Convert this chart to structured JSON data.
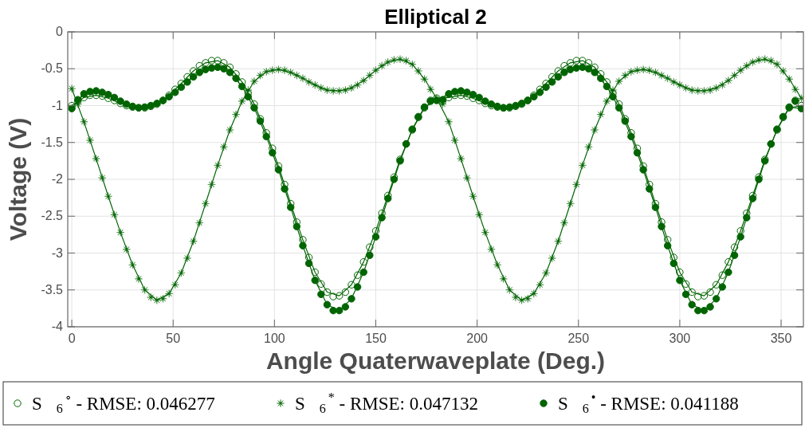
{
  "chart_data": {
    "type": "scatter",
    "title": "Elliptical 2",
    "xlabel": "Angle Quaterwaveplate (Deg.)",
    "ylabel": "Voltage (V)",
    "xlim": [
      -2,
      361
    ],
    "ylim": [
      -4,
      0
    ],
    "xticks": [
      0,
      50,
      100,
      150,
      200,
      250,
      300,
      350
    ],
    "yticks": [
      0,
      -0.5,
      -1,
      -1.5,
      -2,
      -2.5,
      -3,
      -3.5,
      -4
    ],
    "grid": true,
    "legend": "bottom",
    "x": [
      0,
      3,
      6,
      9,
      12,
      15,
      18,
      21,
      24,
      27,
      30,
      33,
      36,
      39,
      42,
      45,
      48,
      51,
      54,
      57,
      60,
      63,
      66,
      69,
      72,
      75,
      78,
      81,
      84,
      87,
      90,
      93,
      96,
      99,
      102,
      105,
      108,
      111,
      114,
      117,
      120,
      123,
      126,
      129,
      132,
      135,
      138,
      141,
      144,
      147,
      150,
      153,
      156,
      159,
      162,
      165,
      168,
      171,
      174,
      177,
      180,
      183,
      186,
      189,
      192,
      195,
      198,
      201,
      204,
      207,
      210,
      213,
      216,
      219,
      222,
      225,
      228,
      231,
      234,
      237,
      240,
      243,
      246,
      249,
      252,
      255,
      258,
      261,
      264,
      267,
      270,
      273,
      276,
      279,
      282,
      285,
      288,
      291,
      294,
      297,
      300,
      303,
      306,
      309,
      312,
      315,
      318,
      321,
      324,
      327,
      330,
      333,
      336,
      339,
      342,
      345,
      348,
      351,
      354,
      357,
      360
    ],
    "series": [
      {
        "name": "S⃗$_{6}$$^{∘}$ - RMSE: 0.046277",
        "color": "#006400",
        "marker": "circle",
        "values": [
          -1.0,
          -0.94,
          -0.89,
          -0.86,
          -0.86,
          -0.87,
          -0.9,
          -0.93,
          -0.97,
          -1.0,
          -1.02,
          -1.03,
          -1.03,
          -1.01,
          -0.98,
          -0.93,
          -0.86,
          -0.78,
          -0.7,
          -0.61,
          -0.53,
          -0.46,
          -0.42,
          -0.39,
          -0.39,
          -0.42,
          -0.48,
          -0.57,
          -0.68,
          -0.83,
          -0.98,
          -1.18,
          -1.37,
          -1.58,
          -1.82,
          -2.07,
          -2.33,
          -2.58,
          -2.82,
          -3.06,
          -3.26,
          -3.42,
          -3.53,
          -3.59,
          -3.58,
          -3.53,
          -3.43,
          -3.3,
          -3.12,
          -2.92,
          -2.7,
          -2.46,
          -2.22,
          -1.97,
          -1.73,
          -1.52,
          -1.33,
          -1.16,
          -1.03,
          -0.93,
          -0.9,
          -0.94,
          -0.89,
          -0.86,
          -0.86,
          -0.87,
          -0.9,
          -0.93,
          -0.97,
          -1.0,
          -1.02,
          -1.03,
          -1.03,
          -1.01,
          -0.98,
          -0.93,
          -0.86,
          -0.78,
          -0.7,
          -0.61,
          -0.53,
          -0.46,
          -0.42,
          -0.39,
          -0.39,
          -0.42,
          -0.48,
          -0.57,
          -0.68,
          -0.83,
          -0.98,
          -1.18,
          -1.37,
          -1.58,
          -1.82,
          -2.07,
          -2.33,
          -2.58,
          -2.82,
          -3.06,
          -3.26,
          -3.42,
          -3.53,
          -3.59,
          -3.58,
          -3.53,
          -3.43,
          -3.3,
          -3.12,
          -2.92,
          -2.7,
          -2.46,
          -2.22,
          -1.97,
          -1.73,
          -1.52,
          -1.33,
          -1.16,
          -1.03,
          -0.93,
          -1.0
        ]
      },
      {
        "name": "S⃗$_{6}$$^{*}$ - RMSE: 0.047132",
        "color": "#006400",
        "marker": "star",
        "values": [
          -0.77,
          -0.98,
          -1.22,
          -1.47,
          -1.72,
          -1.98,
          -2.23,
          -2.48,
          -2.72,
          -2.95,
          -3.16,
          -3.35,
          -3.5,
          -3.6,
          -3.64,
          -3.62,
          -3.55,
          -3.43,
          -3.27,
          -3.07,
          -2.84,
          -2.59,
          -2.33,
          -2.07,
          -1.81,
          -1.56,
          -1.33,
          -1.12,
          -0.94,
          -0.79,
          -0.67,
          -0.59,
          -0.54,
          -0.52,
          -0.51,
          -0.52,
          -0.55,
          -0.59,
          -0.63,
          -0.68,
          -0.72,
          -0.76,
          -0.79,
          -0.8,
          -0.8,
          -0.79,
          -0.76,
          -0.72,
          -0.66,
          -0.59,
          -0.52,
          -0.46,
          -0.41,
          -0.38,
          -0.37,
          -0.39,
          -0.44,
          -0.53,
          -0.64,
          -0.78,
          -0.9,
          -0.98,
          -1.22,
          -1.47,
          -1.72,
          -1.98,
          -2.23,
          -2.48,
          -2.72,
          -2.95,
          -3.16,
          -3.35,
          -3.5,
          -3.6,
          -3.64,
          -3.62,
          -3.55,
          -3.43,
          -3.27,
          -3.07,
          -2.84,
          -2.59,
          -2.33,
          -2.07,
          -1.81,
          -1.56,
          -1.33,
          -1.12,
          -0.94,
          -0.79,
          -0.67,
          -0.59,
          -0.54,
          -0.52,
          -0.51,
          -0.52,
          -0.55,
          -0.59,
          -0.63,
          -0.68,
          -0.72,
          -0.76,
          -0.79,
          -0.8,
          -0.8,
          -0.79,
          -0.76,
          -0.72,
          -0.66,
          -0.59,
          -0.52,
          -0.46,
          -0.41,
          -0.38,
          -0.37,
          -0.39,
          -0.44,
          -0.53,
          -0.64,
          -0.78,
          -0.9
        ]
      },
      {
        "name": "S⃗$_{6}$$^{•}$ - RMSE: 0.041188",
        "color": "#006400",
        "marker": "circle",
        "values": [
          -1.04,
          -0.92,
          -0.84,
          -0.81,
          -0.8,
          -0.82,
          -0.85,
          -0.89,
          -0.94,
          -0.98,
          -1.01,
          -1.03,
          -1.02,
          -1.0,
          -0.97,
          -0.93,
          -0.88,
          -0.82,
          -0.75,
          -0.68,
          -0.61,
          -0.55,
          -0.51,
          -0.49,
          -0.48,
          -0.5,
          -0.55,
          -0.63,
          -0.74,
          -0.88,
          -1.03,
          -1.21,
          -1.42,
          -1.64,
          -1.87,
          -2.13,
          -2.38,
          -2.64,
          -2.9,
          -3.14,
          -3.37,
          -3.56,
          -3.7,
          -3.78,
          -3.78,
          -3.73,
          -3.62,
          -3.46,
          -3.26,
          -3.03,
          -2.78,
          -2.52,
          -2.26,
          -2.0,
          -1.75,
          -1.52,
          -1.32,
          -1.15,
          -1.02,
          -0.94,
          -0.93,
          -0.92,
          -0.84,
          -0.81,
          -0.8,
          -0.82,
          -0.85,
          -0.89,
          -0.94,
          -0.98,
          -1.01,
          -1.03,
          -1.02,
          -1.0,
          -0.97,
          -0.93,
          -0.88,
          -0.82,
          -0.75,
          -0.68,
          -0.61,
          -0.55,
          -0.51,
          -0.49,
          -0.48,
          -0.5,
          -0.55,
          -0.63,
          -0.74,
          -0.88,
          -1.03,
          -1.21,
          -1.42,
          -1.64,
          -1.87,
          -2.13,
          -2.38,
          -2.64,
          -2.9,
          -3.14,
          -3.37,
          -3.56,
          -3.7,
          -3.78,
          -3.78,
          -3.73,
          -3.62,
          -3.46,
          -3.26,
          -3.03,
          -2.78,
          -2.52,
          -2.26,
          -2.0,
          -1.75,
          -1.52,
          -1.32,
          -1.15,
          -1.02,
          -0.94,
          -1.04
        ]
      },
      {
        "type": "line",
        "color": "#006400",
        "x": [
          0,
          6,
          12,
          18,
          24,
          30,
          36,
          42,
          48,
          54,
          60,
          66,
          72,
          78,
          84,
          90,
          96,
          102,
          108,
          114,
          120,
          126,
          132,
          138,
          144,
          150,
          156,
          162,
          168,
          174,
          180,
          186,
          192,
          198,
          204,
          210,
          216,
          222,
          228,
          234,
          240,
          246,
          252,
          258,
          264,
          270,
          276,
          282,
          288,
          294,
          300,
          306,
          312,
          318,
          324,
          330,
          336,
          342,
          348,
          354,
          360
        ],
        "values": [
          -1.0,
          -0.89,
          -0.86,
          -0.9,
          -0.97,
          -1.02,
          -1.03,
          -0.98,
          -0.86,
          -0.7,
          -0.53,
          -0.42,
          -0.39,
          -0.48,
          -0.68,
          -0.98,
          -1.37,
          -1.82,
          -2.33,
          -2.82,
          -3.26,
          -3.53,
          -3.58,
          -3.43,
          -3.12,
          -2.7,
          -2.22,
          -1.73,
          -1.33,
          -1.03,
          -0.9,
          -0.89,
          -0.86,
          -0.9,
          -0.97,
          -1.02,
          -1.03,
          -0.98,
          -0.86,
          -0.7,
          -0.53,
          -0.42,
          -0.39,
          -0.48,
          -0.68,
          -0.98,
          -1.37,
          -1.82,
          -2.33,
          -2.82,
          -3.26,
          -3.53,
          -3.58,
          -3.43,
          -3.12,
          -2.7,
          -2.22,
          -1.73,
          -1.33,
          -1.03,
          -1.0
        ]
      },
      {
        "type": "line",
        "color": "#006400",
        "x": [
          0,
          6,
          12,
          18,
          24,
          30,
          36,
          42,
          48,
          54,
          60,
          66,
          72,
          78,
          84,
          90,
          96,
          102,
          108,
          114,
          120,
          126,
          132,
          138,
          144,
          150,
          156,
          162,
          168,
          174,
          180,
          186,
          192,
          198,
          204,
          210,
          216,
          222,
          228,
          234,
          240,
          246,
          252,
          258,
          264,
          270,
          276,
          282,
          288,
          294,
          300,
          306,
          312,
          318,
          324,
          330,
          336,
          342,
          348,
          354,
          360
        ],
        "values": [
          -0.77,
          -1.22,
          -1.72,
          -2.23,
          -2.72,
          -3.16,
          -3.5,
          -3.64,
          -3.55,
          -3.27,
          -2.84,
          -2.33,
          -1.81,
          -1.33,
          -0.94,
          -0.67,
          -0.54,
          -0.51,
          -0.55,
          -0.63,
          -0.72,
          -0.79,
          -0.8,
          -0.76,
          -0.66,
          -0.52,
          -0.41,
          -0.37,
          -0.44,
          -0.64,
          -0.9,
          -1.22,
          -1.72,
          -2.23,
          -2.72,
          -3.16,
          -3.5,
          -3.64,
          -3.55,
          -3.27,
          -2.84,
          -2.33,
          -1.81,
          -1.33,
          -0.94,
          -0.67,
          -0.54,
          -0.51,
          -0.55,
          -0.63,
          -0.72,
          -0.79,
          -0.8,
          -0.76,
          -0.66,
          -0.52,
          -0.41,
          -0.37,
          -0.44,
          -0.64,
          -0.9
        ]
      },
      {
        "type": "line",
        "color": "#006400",
        "x": [
          0,
          6,
          12,
          18,
          24,
          30,
          36,
          42,
          48,
          54,
          60,
          66,
          72,
          78,
          84,
          90,
          96,
          102,
          108,
          114,
          120,
          126,
          132,
          138,
          144,
          150,
          156,
          162,
          168,
          174,
          180,
          186,
          192,
          198,
          204,
          210,
          216,
          222,
          228,
          234,
          240,
          246,
          252,
          258,
          264,
          270,
          276,
          282,
          288,
          294,
          300,
          306,
          312,
          318,
          324,
          330,
          336,
          342,
          348,
          354,
          360
        ],
        "values": [
          -1.04,
          -0.84,
          -0.8,
          -0.85,
          -0.94,
          -1.01,
          -1.02,
          -0.97,
          -0.88,
          -0.75,
          -0.61,
          -0.51,
          -0.48,
          -0.55,
          -0.74,
          -1.03,
          -1.42,
          -1.87,
          -2.38,
          -2.9,
          -3.37,
          -3.7,
          -3.78,
          -3.62,
          -3.26,
          -2.78,
          -2.26,
          -1.75,
          -1.32,
          -1.02,
          -0.93,
          -0.84,
          -0.8,
          -0.85,
          -0.94,
          -1.01,
          -1.02,
          -0.97,
          -0.88,
          -0.75,
          -0.61,
          -0.51,
          -0.48,
          -0.55,
          -0.74,
          -1.03,
          -1.42,
          -1.87,
          -2.38,
          -2.9,
          -3.37,
          -3.7,
          -3.78,
          -3.62,
          -3.26,
          -2.78,
          -2.26,
          -1.75,
          -1.32,
          -1.02,
          -1.04
        ]
      }
    ]
  }
}
